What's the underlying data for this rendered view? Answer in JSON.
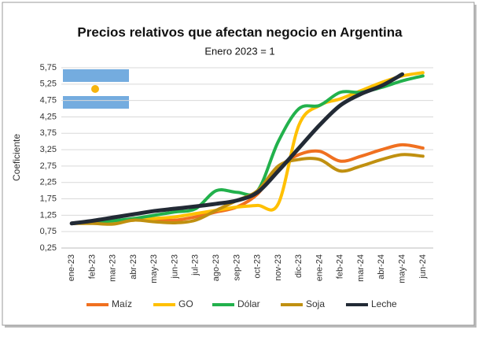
{
  "chart_data": {
    "type": "line",
    "title": "Precios relativos que afectan negocio en Argentina",
    "subtitle": "Enero 2023 = 1",
    "y_label": "Coeficiente",
    "categories": [
      "ene-23",
      "feb-23",
      "mar-23",
      "abr-23",
      "may-23",
      "jun-23",
      "jul-23",
      "ago-23",
      "sep-23",
      "oct-23",
      "nov-23",
      "dic-23",
      "ene-24",
      "feb-24",
      "mar-24",
      "abr-24",
      "may-24",
      "jun-24"
    ],
    "series": [
      {
        "name": "Maíz",
        "color": "#f07020",
        "values": [
          1.0,
          1.02,
          1.05,
          1.1,
          1.12,
          1.1,
          1.2,
          1.35,
          1.5,
          1.9,
          2.7,
          3.1,
          3.2,
          2.9,
          3.05,
          3.25,
          3.4,
          3.3
        ]
      },
      {
        "name": "GO",
        "color": "#ffc000",
        "values": [
          1.0,
          1.02,
          1.05,
          1.1,
          1.15,
          1.2,
          1.3,
          1.4,
          1.5,
          1.55,
          1.6,
          4.0,
          4.6,
          4.8,
          5.05,
          5.3,
          5.5,
          5.6
        ]
      },
      {
        "name": "Dólar",
        "color": "#22b14c",
        "values": [
          1.0,
          1.03,
          1.08,
          1.15,
          1.25,
          1.35,
          1.45,
          2.0,
          1.95,
          2.0,
          3.5,
          4.5,
          4.6,
          5.0,
          5.0,
          5.15,
          5.35,
          5.5
        ]
      },
      {
        "name": "Soja",
        "color": "#c09010",
        "values": [
          1.0,
          1.0,
          0.98,
          1.1,
          1.05,
          1.02,
          1.1,
          1.4,
          1.7,
          2.0,
          2.75,
          2.95,
          2.95,
          2.6,
          2.75,
          2.95,
          3.1,
          3.05
        ]
      },
      {
        "name": "Leche",
        "color": "#222a35",
        "values": [
          1.0,
          1.08,
          1.18,
          1.28,
          1.38,
          1.45,
          1.52,
          1.6,
          1.7,
          1.95,
          2.6,
          3.3,
          4.0,
          4.6,
          4.95,
          5.2,
          5.55,
          null
        ]
      }
    ],
    "ylim": [
      0.25,
      5.75
    ],
    "yticks": [
      {
        "value": 0.25,
        "label": "0,25"
      },
      {
        "value": 0.75,
        "label": "0,75"
      },
      {
        "value": 1.25,
        "label": "1,25"
      },
      {
        "value": 1.75,
        "label": "1,75"
      },
      {
        "value": 2.25,
        "label": "2,25"
      },
      {
        "value": 2.75,
        "label": "2,75"
      },
      {
        "value": 3.25,
        "label": "3,25"
      },
      {
        "value": 3.75,
        "label": "3,75"
      },
      {
        "value": 4.25,
        "label": "4,25"
      },
      {
        "value": 4.75,
        "label": "4,75"
      },
      {
        "value": 5.25,
        "label": "5,25"
      },
      {
        "value": 5.75,
        "label": "5,75"
      }
    ],
    "grid": true,
    "legend": "bottom"
  }
}
